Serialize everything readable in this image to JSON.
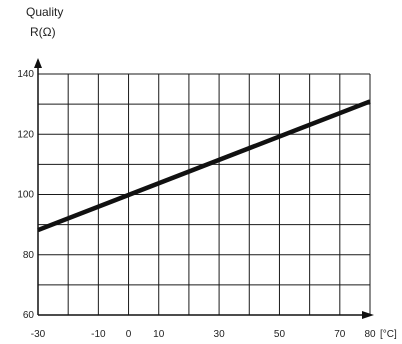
{
  "chart_data": {
    "type": "line",
    "title": "Quality",
    "ylabel": "R(Ω)",
    "xlabel": "[°C]",
    "xlim": [
      -30,
      80
    ],
    "ylim": [
      60,
      140
    ],
    "xticks": [
      -30,
      -10,
      0,
      10,
      30,
      50,
      70,
      80
    ],
    "yticks": [
      60,
      80,
      100,
      120,
      140
    ],
    "grid": true,
    "series": [
      {
        "x": [
          -30,
          80
        ],
        "y": [
          88.2,
          130.9
        ]
      }
    ]
  }
}
